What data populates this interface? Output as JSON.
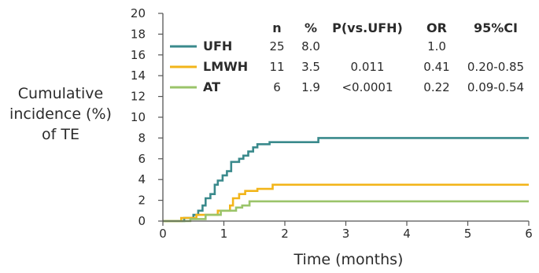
{
  "chart_data": {
    "type": "line",
    "title": "",
    "ylabel": [
      "Cumulative",
      "incidence (%)",
      "of TE"
    ],
    "xlabel": "Time (months)",
    "xlim": [
      0,
      6
    ],
    "ylim": [
      0,
      20
    ],
    "x_ticks": [
      "0",
      "1",
      "2",
      "3",
      "4",
      "5",
      "6"
    ],
    "y_ticks": [
      "0",
      "2",
      "4",
      "6",
      "8",
      "10",
      "12",
      "14",
      "16",
      "18",
      "20"
    ],
    "step": true,
    "legend": {
      "position": "top-left",
      "headers": [
        "n",
        "%",
        "P(vs.UFH)",
        "OR",
        "95%CI"
      ],
      "rows": [
        {
          "name": "UFH",
          "n": "25",
          "pct": "8.0",
          "p": "",
          "or": "1.0",
          "ci": ""
        },
        {
          "name": "LMWH",
          "n": "11",
          "pct": "3.5",
          "p": "0.011",
          "or": "0.41",
          "ci": "0.20-0.85"
        },
        {
          "name": "AT",
          "n": "6",
          "pct": "1.9",
          "p": "<0.0001",
          "or": "0.22",
          "ci": "0.09-0.54"
        }
      ]
    },
    "series": [
      {
        "name": "UFH",
        "color": "#3a8a8c",
        "points": [
          [
            0,
            0
          ],
          [
            0.35,
            0
          ],
          [
            0.35,
            0.3
          ],
          [
            0.5,
            0.3
          ],
          [
            0.5,
            0.6
          ],
          [
            0.58,
            0.6
          ],
          [
            0.58,
            1.0
          ],
          [
            0.65,
            1.0
          ],
          [
            0.65,
            1.5
          ],
          [
            0.7,
            1.5
          ],
          [
            0.7,
            2.2
          ],
          [
            0.78,
            2.2
          ],
          [
            0.78,
            2.6
          ],
          [
            0.85,
            2.6
          ],
          [
            0.85,
            3.5
          ],
          [
            0.9,
            3.5
          ],
          [
            0.9,
            3.9
          ],
          [
            0.98,
            3.9
          ],
          [
            0.98,
            4.4
          ],
          [
            1.05,
            4.4
          ],
          [
            1.05,
            4.8
          ],
          [
            1.12,
            4.8
          ],
          [
            1.12,
            5.7
          ],
          [
            1.25,
            5.7
          ],
          [
            1.25,
            6.0
          ],
          [
            1.32,
            6.0
          ],
          [
            1.32,
            6.3
          ],
          [
            1.4,
            6.3
          ],
          [
            1.4,
            6.7
          ],
          [
            1.48,
            6.7
          ],
          [
            1.48,
            7.1
          ],
          [
            1.55,
            7.1
          ],
          [
            1.55,
            7.4
          ],
          [
            1.75,
            7.4
          ],
          [
            1.75,
            7.6
          ],
          [
            2.55,
            7.6
          ],
          [
            2.55,
            8.0
          ],
          [
            6,
            8.0
          ]
        ]
      },
      {
        "name": "LMWH",
        "color": "#f2b51a",
        "points": [
          [
            0,
            0
          ],
          [
            0.3,
            0
          ],
          [
            0.3,
            0.3
          ],
          [
            0.55,
            0.3
          ],
          [
            0.55,
            0.6
          ],
          [
            0.9,
            0.6
          ],
          [
            0.9,
            1.0
          ],
          [
            1.1,
            1.0
          ],
          [
            1.1,
            1.5
          ],
          [
            1.15,
            1.5
          ],
          [
            1.15,
            2.2
          ],
          [
            1.25,
            2.2
          ],
          [
            1.25,
            2.6
          ],
          [
            1.35,
            2.6
          ],
          [
            1.35,
            2.9
          ],
          [
            1.55,
            2.9
          ],
          [
            1.55,
            3.1
          ],
          [
            1.8,
            3.1
          ],
          [
            1.8,
            3.5
          ],
          [
            6,
            3.5
          ]
        ]
      },
      {
        "name": "AT",
        "color": "#9ac46a",
        "points": [
          [
            0,
            0
          ],
          [
            0.45,
            0
          ],
          [
            0.45,
            0.2
          ],
          [
            0.7,
            0.2
          ],
          [
            0.7,
            0.6
          ],
          [
            0.95,
            0.6
          ],
          [
            0.95,
            1.0
          ],
          [
            1.2,
            1.0
          ],
          [
            1.2,
            1.3
          ],
          [
            1.3,
            1.3
          ],
          [
            1.3,
            1.5
          ],
          [
            1.42,
            1.5
          ],
          [
            1.42,
            1.9
          ],
          [
            6,
            1.9
          ]
        ]
      }
    ]
  }
}
